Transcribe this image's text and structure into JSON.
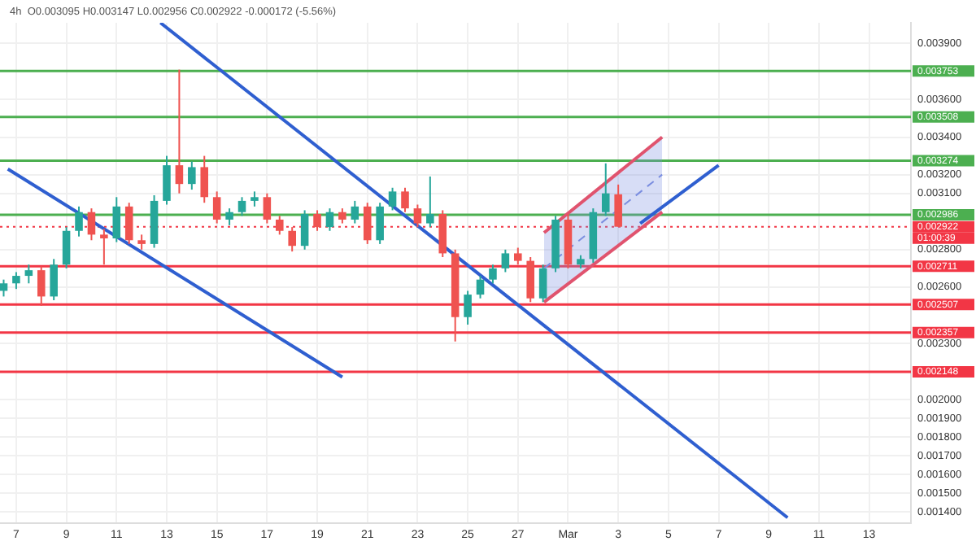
{
  "chart_data": {
    "type": "candlestick",
    "annotations": [
      "4h  O0.003095 H0.003147 L0.002956 C0.002922 -0.000172 (-5.56%)",
      "01:00:39"
    ],
    "x": [
      "--02-06T12:00",
      "--02-07T00:00",
      "--02-07T12:00",
      "--02-08T00:00",
      "--02-08T12:00",
      "--02-09T00:00",
      "--02-09T12:00",
      "--02-10T00:00",
      "--02-10T12:00",
      "--02-11T00:00",
      "--02-11T12:00",
      "--02-12T00:00",
      "--02-12T12:00",
      "--02-13T00:00",
      "--02-13T12:00",
      "--02-14T00:00",
      "--02-14T12:00",
      "--02-15T00:00",
      "--02-15T12:00",
      "--02-16T00:00",
      "--02-16T12:00",
      "--02-17T00:00",
      "--02-17T12:00",
      "--02-18T00:00",
      "--02-18T12:00",
      "--02-19T00:00",
      "--02-19T12:00",
      "--02-20T00:00",
      "--02-20T12:00",
      "--02-21T00:00",
      "--02-21T12:00",
      "--02-22T00:00",
      "--02-22T12:00",
      "--02-23T00:00",
      "--02-23T12:00",
      "--02-24T00:00",
      "--02-24T12:00",
      "--02-25T00:00",
      "--02-25T12:00",
      "--02-26T00:00",
      "--02-26T12:00",
      "--02-27T00:00",
      "--02-27T12:00",
      "--02-28T00:00",
      "--02-28T12:00",
      "--03-01T00:00",
      "--03-01T12:00",
      "--03-02T00:00",
      "--03-02T12:00",
      "--03-03T00:00"
    ],
    "ohlc": [
      [
        0.00258,
        0.00264,
        0.00255,
        0.00262
      ],
      [
        0.00262,
        0.00268,
        0.00259,
        0.00266
      ],
      [
        0.00266,
        0.00272,
        0.00262,
        0.00269
      ],
      [
        0.00269,
        0.00271,
        0.0025,
        0.00255
      ],
      [
        0.00255,
        0.00275,
        0.00253,
        0.00272
      ],
      [
        0.00272,
        0.00292,
        0.0027,
        0.0029
      ],
      [
        0.0029,
        0.00303,
        0.00287,
        0.003
      ],
      [
        0.003,
        0.00302,
        0.00285,
        0.00288
      ],
      [
        0.00288,
        0.00291,
        0.00272,
        0.00286
      ],
      [
        0.00286,
        0.00308,
        0.00284,
        0.00303
      ],
      [
        0.00303,
        0.00305,
        0.00283,
        0.00285
      ],
      [
        0.00285,
        0.00288,
        0.0028,
        0.00283
      ],
      [
        0.00283,
        0.00309,
        0.00281,
        0.00306
      ],
      [
        0.00306,
        0.0033,
        0.00304,
        0.00325
      ],
      [
        0.00325,
        0.00376,
        0.0031,
        0.00315
      ],
      [
        0.00315,
        0.00327,
        0.00312,
        0.00324
      ],
      [
        0.00324,
        0.0033,
        0.00305,
        0.00308
      ],
      [
        0.00308,
        0.00311,
        0.00294,
        0.00296
      ],
      [
        0.00296,
        0.00302,
        0.00293,
        0.003
      ],
      [
        0.003,
        0.00308,
        0.00298,
        0.00306
      ],
      [
        0.00306,
        0.00311,
        0.00303,
        0.00308
      ],
      [
        0.00308,
        0.0031,
        0.00294,
        0.00296
      ],
      [
        0.00296,
        0.00298,
        0.00288,
        0.0029
      ],
      [
        0.0029,
        0.00292,
        0.00279,
        0.00282
      ],
      [
        0.00282,
        0.00301,
        0.0028,
        0.00299
      ],
      [
        0.00299,
        0.00301,
        0.0029,
        0.00292
      ],
      [
        0.00292,
        0.00302,
        0.0029,
        0.003
      ],
      [
        0.003,
        0.00302,
        0.00294,
        0.00296
      ],
      [
        0.00296,
        0.00306,
        0.00294,
        0.00303
      ],
      [
        0.00303,
        0.00305,
        0.00283,
        0.00285
      ],
      [
        0.00285,
        0.00305,
        0.00283,
        0.00303
      ],
      [
        0.00303,
        0.00313,
        0.00301,
        0.00311
      ],
      [
        0.00311,
        0.00313,
        0.003,
        0.00302
      ],
      [
        0.00302,
        0.00304,
        0.00292,
        0.00294
      ],
      [
        0.00294,
        0.00319,
        0.00292,
        0.00299
      ],
      [
        0.00299,
        0.00301,
        0.00276,
        0.00278
      ],
      [
        0.00278,
        0.0028,
        0.00231,
        0.00244
      ],
      [
        0.00244,
        0.00258,
        0.0024,
        0.00256
      ],
      [
        0.00256,
        0.00266,
        0.00254,
        0.00264
      ],
      [
        0.00264,
        0.00272,
        0.00262,
        0.0027
      ],
      [
        0.0027,
        0.0028,
        0.00268,
        0.00278
      ],
      [
        0.00278,
        0.00281,
        0.00272,
        0.00274
      ],
      [
        0.00274,
        0.00276,
        0.00252,
        0.00254
      ],
      [
        0.00254,
        0.00272,
        0.00252,
        0.0027
      ],
      [
        0.0027,
        0.00298,
        0.00268,
        0.00296
      ],
      [
        0.00296,
        0.00299,
        0.0027,
        0.00272
      ],
      [
        0.00272,
        0.00277,
        0.0027,
        0.00275
      ],
      [
        0.00275,
        0.00302,
        0.00273,
        0.003
      ],
      [
        0.003,
        0.00326,
        0.00298,
        0.0031
      ],
      [
        0.003095,
        0.003147,
        0.002922,
        0.002922
      ]
    ],
    "colors": [
      "#26a69a",
      "#26a69a",
      "#26a69a",
      "#ef5350",
      "#26a69a",
      "#26a69a",
      "#26a69a",
      "#ef5350",
      "#ef5350",
      "#26a69a",
      "#ef5350",
      "#ef5350",
      "#26a69a",
      "#26a69a",
      "#ef5350",
      "#26a69a",
      "#ef5350",
      "#ef5350",
      "#26a69a",
      "#26a69a",
      "#26a69a",
      "#ef5350",
      "#ef5350",
      "#ef5350",
      "#26a69a",
      "#ef5350",
      "#26a69a",
      "#ef5350",
      "#26a69a",
      "#ef5350",
      "#26a69a",
      "#26a69a",
      "#ef5350",
      "#ef5350",
      "#26a69a",
      "#ef5350",
      "#ef5350",
      "#26a69a",
      "#26a69a",
      "#26a69a",
      "#26a69a",
      "#ef5350",
      "#ef5350",
      "#26a69a",
      "#26a69a",
      "#ef5350",
      "#26a69a",
      "#26a69a",
      "#26a69a",
      "#ef5350"
    ],
    "series": [
      {
        "type": "line",
        "color": "#2f5fd0",
        "x": [
          "--02-12T18:00",
          "--03-09T18:00"
        ],
        "values": [
          0.00401,
          0.00137
        ]
      },
      {
        "type": "line",
        "color": "#2f5fd0",
        "x": [
          "--02-06T16:00",
          "--02-20T00:00"
        ],
        "values": [
          0.00323,
          0.00212
        ]
      },
      {
        "type": "line",
        "color": "#2f5fd0",
        "x": [
          "--03-03T21:00",
          "--03-07T00:00"
        ],
        "values": [
          0.00294,
          0.00325
        ]
      },
      {
        "type": "line",
        "color": "#e0536e",
        "x": [
          "--02-28T01:00",
          "--03-04T18:00"
        ],
        "values": [
          0.00252,
          0.003
        ]
      },
      {
        "type": "line",
        "color": "#e0536e",
        "x": [
          "--02-28T01:00",
          "--03-04T18:00"
        ],
        "values": [
          0.00289,
          0.0034
        ]
      },
      {
        "type": "line",
        "color": "#7b8ee0",
        "line_style": "dashed",
        "x": [
          "--02-28T01:00",
          "--03-04T18:00"
        ],
        "values": [
          0.0027,
          0.0032
        ],
        "lower": [
          0.00252,
          0.003
        ],
        "upper": [
          0.00289,
          0.0034
        ]
      }
    ],
    "xlim": [
      "--02-06T08:30",
      "--03-14T16:00"
    ],
    "xticks": [
      {
        "value": "--02-07",
        "label": "7"
      },
      {
        "value": "--02-09",
        "label": "9"
      },
      {
        "value": "--02-11",
        "label": "11"
      },
      {
        "value": "--02-13",
        "label": "13"
      },
      {
        "value": "--02-15",
        "label": "15"
      },
      {
        "value": "--02-17",
        "label": "17"
      },
      {
        "value": "--02-19",
        "label": "19"
      },
      {
        "value": "--02-21",
        "label": "21"
      },
      {
        "value": "--02-23",
        "label": "23"
      },
      {
        "value": "--02-25",
        "label": "25"
      },
      {
        "value": "--02-27",
        "label": "27"
      },
      {
        "value": "--03-01",
        "label": "Mar"
      },
      {
        "value": "--03-03",
        "label": "3"
      },
      {
        "value": "--03-05",
        "label": "5"
      },
      {
        "value": "--03-07",
        "label": "7"
      },
      {
        "value": "--03-09",
        "label": "9"
      },
      {
        "value": "--03-11",
        "label": "11"
      },
      {
        "value": "--03-13",
        "label": "13"
      }
    ],
    "ylim": [
      0.00134,
      0.00401
    ],
    "yticks": [
      {
        "value": 0.0014,
        "label": "0.001400"
      },
      {
        "value": 0.0015,
        "label": "0.001500"
      },
      {
        "value": 0.0016,
        "label": "0.001600"
      },
      {
        "value": 0.0017,
        "label": "0.001700"
      },
      {
        "value": 0.0018,
        "label": "0.001800"
      },
      {
        "value": 0.0019,
        "label": "0.001900"
      },
      {
        "value": 0.002,
        "label": "0.002000"
      },
      {
        "value": 0.0023,
        "label": "0.002300"
      },
      {
        "value": 0.0026,
        "label": "0.002600"
      },
      {
        "value": 0.0028,
        "label": "0.002800"
      },
      {
        "value": 0.0031,
        "label": "0.003100"
      },
      {
        "value": 0.0032,
        "label": "0.003200"
      },
      {
        "value": 0.0034,
        "label": "0.003400"
      },
      {
        "value": 0.0036,
        "label": "0.003600"
      },
      {
        "value": 0.0039,
        "label": "0.003900"
      }
    ],
    "grid": true,
    "ref_lines": [
      {
        "axis": "y",
        "value": 0.003753,
        "label": "0.003753",
        "color": "#4caf50"
      },
      {
        "axis": "y",
        "value": 0.003508,
        "label": "0.003508",
        "color": "#4caf50"
      },
      {
        "axis": "y",
        "value": 0.003274,
        "label": "0.003274",
        "color": "#4caf50"
      },
      {
        "axis": "y",
        "value": 0.002986,
        "label": "0.002986",
        "color": "#4caf50"
      },
      {
        "axis": "y",
        "value": 0.002922,
        "label": "0.002922",
        "color": "#f23645",
        "line_style": "dotted"
      },
      {
        "axis": "y",
        "value": 0.002711,
        "label": "0.002711",
        "color": "#f23645"
      },
      {
        "axis": "y",
        "value": 0.002507,
        "label": "0.002507",
        "color": "#f23645"
      },
      {
        "axis": "y",
        "value": 0.002357,
        "label": "0.002357",
        "color": "#f23645"
      },
      {
        "axis": "y",
        "value": 0.002148,
        "label": "0.002148",
        "color": "#f23645"
      }
    ]
  }
}
